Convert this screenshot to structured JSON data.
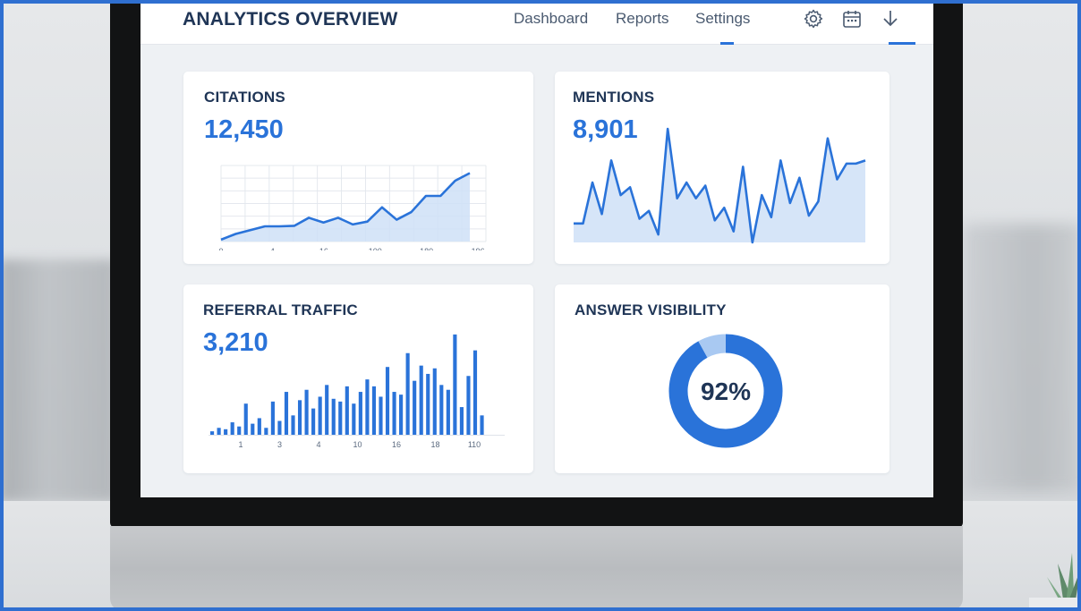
{
  "header": {
    "title": "ANALYTICS OVERVIEW",
    "nav": [
      {
        "label": "Dashboard"
      },
      {
        "label": "Reports"
      },
      {
        "label": "Settings"
      }
    ],
    "icons": [
      "gear-icon",
      "calendar-icon",
      "download-icon"
    ]
  },
  "colors": {
    "accent": "#2a73d9",
    "accent_light": "#a9c9f2",
    "fill": "#cfe0f7",
    "title": "#1f3556"
  },
  "cards": {
    "citations": {
      "title": "CITATIONS",
      "value": "12,450"
    },
    "mentions": {
      "title": "MENTIONS",
      "value": "8,901"
    },
    "referral": {
      "title": "REFERRAL TRAFFIC",
      "value": "3,210"
    },
    "visibility": {
      "title": "ANSWER VISIBILITY",
      "value": "92%"
    }
  },
  "chart_data": [
    {
      "type": "area",
      "title": "CITATIONS",
      "x_ticks": [
        "0",
        "4",
        "16",
        "100",
        "180",
        "196"
      ],
      "values": [
        2,
        8,
        12,
        16,
        16,
        16.5,
        25,
        20,
        25,
        18,
        21,
        36,
        23,
        31,
        48,
        48,
        64,
        72
      ],
      "ylim": [
        0,
        80
      ],
      "grid": true
    },
    {
      "type": "area",
      "title": "MENTIONS",
      "values": [
        12,
        12,
        38,
        18,
        52,
        30,
        35,
        15,
        20,
        5,
        72,
        28,
        38,
        28,
        36,
        14,
        22,
        7,
        48,
        0,
        30,
        16,
        52,
        25,
        41,
        17,
        26,
        66,
        40,
        50,
        50,
        52
      ],
      "ylim": [
        0,
        80
      ],
      "grid": false
    },
    {
      "type": "bar",
      "title": "REFERRAL TRAFFIC",
      "x_ticks": [
        "1",
        "3",
        "4",
        "10",
        "16",
        "18",
        "110"
      ],
      "values": [
        5,
        10,
        8,
        18,
        12,
        45,
        16,
        24,
        10,
        48,
        20,
        62,
        28,
        50,
        65,
        38,
        55,
        72,
        52,
        48,
        70,
        45,
        62,
        80,
        70,
        55,
        98,
        62,
        58,
        118,
        78,
        100,
        88,
        96,
        72,
        65,
        145,
        40,
        85,
        122,
        28
      ],
      "ylim": [
        0,
        150
      ],
      "grid": false
    },
    {
      "type": "pie",
      "title": "ANSWER VISIBILITY",
      "values": [
        92,
        8
      ],
      "labels": [
        "92%",
        ""
      ]
    }
  ]
}
